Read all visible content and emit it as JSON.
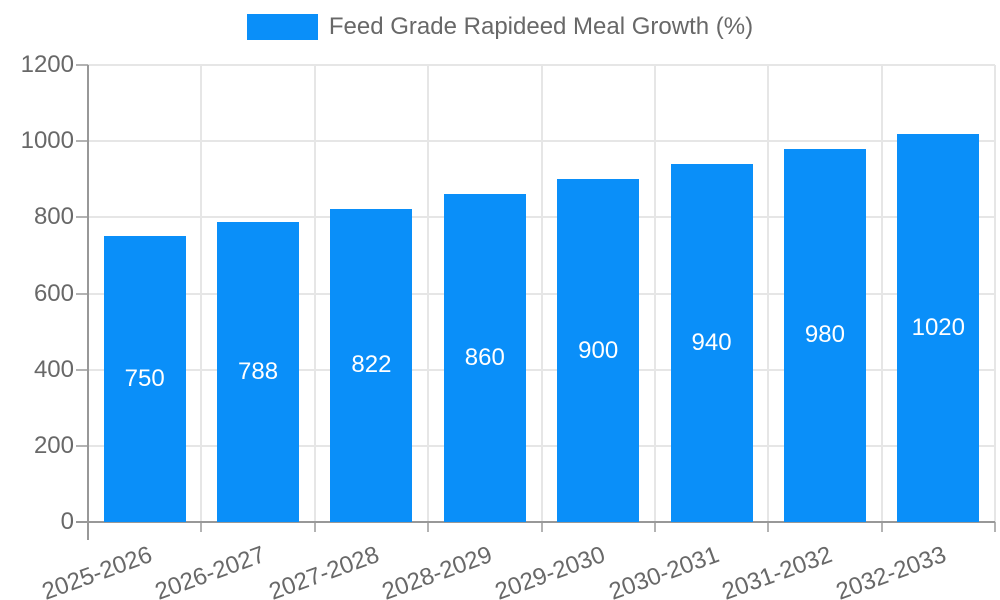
{
  "chart_data": {
    "type": "bar",
    "title": "",
    "xlabel": "",
    "ylabel": "",
    "legend": {
      "label": "Feed Grade Rapideed Meal Growth (%)",
      "position": "top"
    },
    "categories": [
      "2025-2026",
      "2026-2027",
      "2027-2028",
      "2028-2029",
      "2029-2030",
      "2030-2031",
      "2031-2032",
      "2032-2033"
    ],
    "series": [
      {
        "name": "Feed Grade Rapideed Meal Growth (%)",
        "values": [
          750,
          788,
          822,
          860,
          900,
          940,
          980,
          1020
        ]
      }
    ],
    "value_labels_shown": true,
    "ylim": [
      0,
      1200
    ],
    "yticks": [
      0,
      200,
      400,
      600,
      800,
      1000,
      1200
    ],
    "grid": true,
    "colors": {
      "bar": "#0a8ff9",
      "gridline": "#e6e6e6",
      "axis_line": "#989898",
      "tick_mark": "#b3b3b3",
      "tick_text": "#686868",
      "value_label_text": "#ffffff",
      "background": "#ffffff"
    }
  }
}
